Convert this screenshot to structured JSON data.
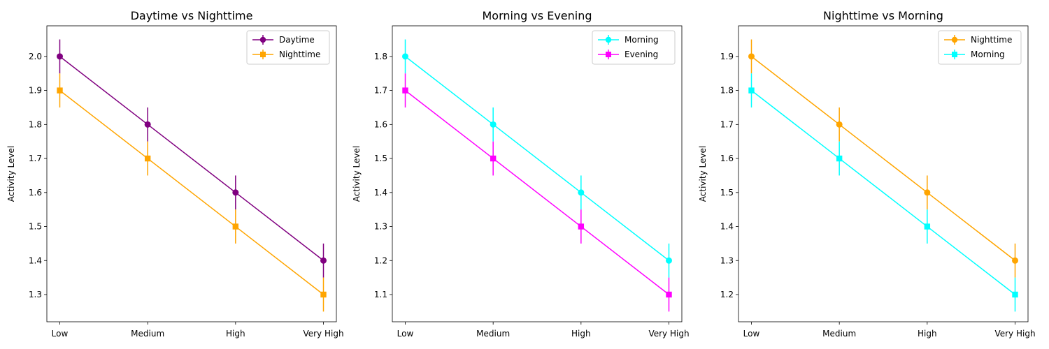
{
  "chart_data": [
    {
      "type": "line",
      "title": "Daytime vs Nighttime",
      "xlabel": "",
      "ylabel": "Activity Level",
      "categories": [
        "Low",
        "Medium",
        "High",
        "Very High"
      ],
      "ylim": [
        1.22,
        2.09
      ],
      "yticks": [
        "1.3",
        "1.4",
        "1.5",
        "1.6",
        "1.7",
        "1.8",
        "1.9",
        "2.0"
      ],
      "grid": false,
      "legend": "top-right",
      "series": [
        {
          "name": "Daytime",
          "values": [
            2.0,
            1.8,
            1.6,
            1.4
          ],
          "errors": [
            0.05,
            0.05,
            0.05,
            0.05
          ],
          "color": "#800080",
          "marker": "circle"
        },
        {
          "name": "Nighttime",
          "values": [
            1.9,
            1.7,
            1.5,
            1.3
          ],
          "errors": [
            0.05,
            0.05,
            0.05,
            0.05
          ],
          "color": "#ffa500",
          "marker": "square"
        }
      ]
    },
    {
      "type": "line",
      "title": "Morning vs Evening",
      "xlabel": "",
      "ylabel": "Activity Level",
      "categories": [
        "Low",
        "Medium",
        "High",
        "Very High"
      ],
      "ylim": [
        1.02,
        1.89
      ],
      "yticks": [
        "1.1",
        "1.2",
        "1.3",
        "1.4",
        "1.5",
        "1.6",
        "1.7",
        "1.8"
      ],
      "grid": false,
      "legend": "top-right",
      "series": [
        {
          "name": "Morning",
          "values": [
            1.8,
            1.6,
            1.4,
            1.2
          ],
          "errors": [
            0.05,
            0.05,
            0.05,
            0.05
          ],
          "color": "#00ffff",
          "marker": "circle"
        },
        {
          "name": "Evening",
          "values": [
            1.7,
            1.5,
            1.3,
            1.1
          ],
          "errors": [
            0.05,
            0.05,
            0.05,
            0.05
          ],
          "color": "#ff00ff",
          "marker": "square"
        }
      ]
    },
    {
      "type": "line",
      "title": "Nighttime vs Morning",
      "xlabel": "",
      "ylabel": "Activity Level",
      "categories": [
        "Low",
        "Medium",
        "High",
        "Very High"
      ],
      "ylim": [
        1.12,
        1.99
      ],
      "yticks": [
        "1.2",
        "1.3",
        "1.4",
        "1.5",
        "1.6",
        "1.7",
        "1.8",
        "1.9"
      ],
      "grid": false,
      "legend": "top-right",
      "series": [
        {
          "name": "Nighttime",
          "values": [
            1.9,
            1.7,
            1.5,
            1.3
          ],
          "errors": [
            0.05,
            0.05,
            0.05,
            0.05
          ],
          "color": "#ffa500",
          "marker": "circle"
        },
        {
          "name": "Morning",
          "values": [
            1.8,
            1.6,
            1.4,
            1.2
          ],
          "errors": [
            0.05,
            0.05,
            0.05,
            0.05
          ],
          "color": "#00ffff",
          "marker": "square"
        }
      ]
    }
  ]
}
